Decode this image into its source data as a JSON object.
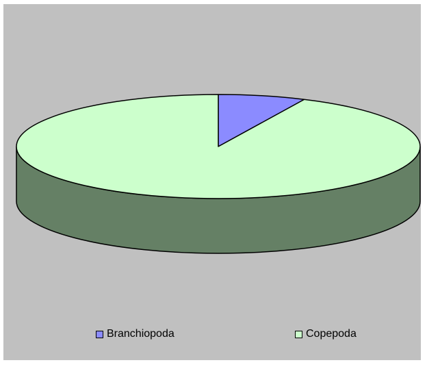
{
  "chart_data": {
    "type": "pie",
    "style": "3d",
    "title": "",
    "series": [
      {
        "categories": [
          "Branchiopoda",
          "Copepoda"
        ],
        "values": [
          7,
          93
        ]
      }
    ],
    "legend": {
      "placement": "bottom",
      "entries": [
        {
          "label": "Branchiopoda",
          "color": "#8b8bff"
        },
        {
          "label": "Copepoda",
          "color": "#ccffcc"
        }
      ]
    },
    "colors": {
      "background": "#c0c0c0",
      "side": "#658065",
      "outline": "#000000"
    }
  }
}
